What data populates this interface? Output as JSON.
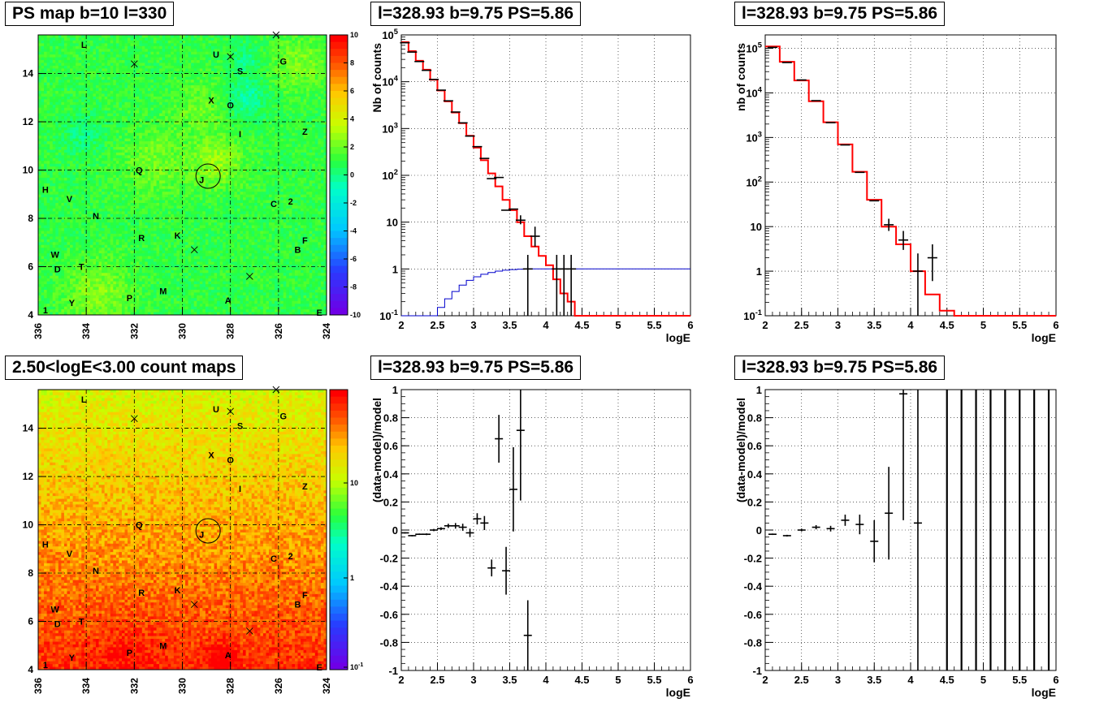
{
  "panel_titles": {
    "map_top": "PS map b=10 l=330",
    "spec_counts": "l=328.93 b=9.75 PS=5.86",
    "spec_counts2": "l=328.93 b=9.75 PS=5.86",
    "map_bottom": "2.50<logE<3.00 count maps",
    "resid1": "l=328.93 b=9.75 PS=5.86",
    "resid2": "l=328.93 b=9.75 PS=5.86"
  },
  "chart_data": [
    {
      "id": "ps_map",
      "type": "heatmap",
      "title": "PS map b=10 l=330",
      "x_ticks": [
        "336",
        "334",
        "332",
        "330",
        "328",
        "326",
        "324"
      ],
      "y_ticks": [
        "4",
        "6",
        "8",
        "10",
        "12",
        "14"
      ],
      "xlim": [
        336,
        324
      ],
      "ylim": [
        4,
        15.6
      ],
      "colorbar": {
        "ticks": [
          "10",
          "8",
          "6",
          "4",
          "2",
          "0",
          "-2",
          "-4",
          "-6",
          "-8",
          "-10"
        ],
        "range": [
          -10,
          10
        ]
      },
      "source_labels": [
        {
          "t": "L",
          "l": 334.1,
          "b": 15.2
        },
        {
          "t": "U",
          "l": 328.6,
          "b": 14.8
        },
        {
          "t": "G",
          "l": 325.8,
          "b": 14.5
        },
        {
          "t": "S",
          "l": 327.6,
          "b": 14.1
        },
        {
          "t": "X",
          "l": 328.8,
          "b": 12.9
        },
        {
          "t": "O",
          "l": 328.0,
          "b": 12.7
        },
        {
          "t": "I",
          "l": 327.6,
          "b": 11.5
        },
        {
          "t": "Z",
          "l": 324.9,
          "b": 11.6
        },
        {
          "t": "Q",
          "l": 331.8,
          "b": 10.0
        },
        {
          "t": "J",
          "l": 329.2,
          "b": 9.6
        },
        {
          "t": "F",
          "l": 324.9,
          "b": 7.1
        },
        {
          "t": "H",
          "l": 335.7,
          "b": 9.2
        },
        {
          "t": "V",
          "l": 334.7,
          "b": 8.8
        },
        {
          "t": "C",
          "l": 326.2,
          "b": 8.6
        },
        {
          "t": "2",
          "l": 325.5,
          "b": 8.7
        },
        {
          "t": "N",
          "l": 333.6,
          "b": 8.1
        },
        {
          "t": "R",
          "l": 331.7,
          "b": 7.2
        },
        {
          "t": "K",
          "l": 330.2,
          "b": 7.3
        },
        {
          "t": "B",
          "l": 325.2,
          "b": 6.7
        },
        {
          "t": "W",
          "l": 335.3,
          "b": 6.5
        },
        {
          "t": "D",
          "l": 335.2,
          "b": 5.9
        },
        {
          "t": "T",
          "l": 334.2,
          "b": 6.0
        },
        {
          "t": "M",
          "l": 330.8,
          "b": 5.0
        },
        {
          "t": "P",
          "l": 332.2,
          "b": 4.7
        },
        {
          "t": "A",
          "l": 328.1,
          "b": 4.6
        },
        {
          "t": "Y",
          "l": 334.6,
          "b": 4.5
        },
        {
          "t": "1",
          "l": 335.7,
          "b": 4.2
        },
        {
          "t": "E",
          "l": 324.3,
          "b": 4.1
        }
      ],
      "cross_markers": [
        {
          "l": 332.0,
          "b": 14.4
        },
        {
          "l": 328.0,
          "b": 14.7
        },
        {
          "l": 326.1,
          "b": 15.6
        },
        {
          "l": 329.5,
          "b": 6.7
        },
        {
          "l": 327.2,
          "b": 5.6
        }
      ],
      "circle": {
        "l": 328.93,
        "b": 9.75
      }
    },
    {
      "id": "counts_fit",
      "type": "line",
      "title": "l=328.93 b=9.75 PS=5.86",
      "xlabel": "logE",
      "ylabel": "Nb of counts",
      "xlim": [
        2,
        6
      ],
      "ylim": [
        0.1,
        100000
      ],
      "log_y": true,
      "x_ticks": [
        "2",
        "2.5",
        "3",
        "3.5",
        "4",
        "4.5",
        "5",
        "5.5",
        "6"
      ],
      "y_ticks": [
        "10^-1",
        "1",
        "10",
        "10^2",
        "10^3",
        "10^4",
        "10^5"
      ],
      "grid": true,
      "series": [
        {
          "name": "model_total",
          "color": "#ff0000",
          "style": "step",
          "x": [
            2.0,
            2.1,
            2.2,
            2.3,
            2.4,
            2.5,
            2.6,
            2.7,
            2.8,
            2.9,
            3.0,
            3.1,
            3.2,
            3.3,
            3.4,
            3.5,
            3.6,
            3.7,
            3.8,
            3.9,
            4.0,
            4.1,
            4.2,
            4.3,
            4.4,
            4.5,
            6.0
          ],
          "y": [
            70000,
            45000,
            28000,
            18000,
            11000,
            6500,
            3800,
            2200,
            1300,
            700,
            390,
            210,
            110,
            58,
            30,
            18,
            10,
            5,
            3,
            1.9,
            1.2,
            0.6,
            0.3,
            0.2,
            0.1,
            0.1,
            0.1
          ]
        },
        {
          "name": "model_ps",
          "color": "#0000cc",
          "style": "step",
          "x": [
            2.0,
            2.2,
            2.4,
            2.5,
            2.6,
            2.7,
            2.8,
            2.9,
            3.0,
            3.1,
            3.2,
            3.3,
            3.4,
            3.5,
            3.6,
            3.7,
            3.8,
            4.0,
            4.2,
            4.4,
            6.0
          ],
          "y": [
            0.1,
            0.1,
            0.1,
            0.15,
            0.23,
            0.33,
            0.45,
            0.57,
            0.68,
            0.77,
            0.84,
            0.9,
            0.94,
            0.97,
            0.99,
            1.0,
            1.0,
            1.0,
            1.0,
            1.0,
            1.0
          ]
        },
        {
          "name": "data",
          "color": "#000000",
          "style": "errorbar",
          "x": [
            2.05,
            2.15,
            2.25,
            2.35,
            2.45,
            2.55,
            2.65,
            2.75,
            2.85,
            2.95,
            3.05,
            3.15,
            3.25,
            3.35,
            3.45,
            3.55,
            3.65,
            3.75,
            3.85,
            4.15,
            4.25,
            4.35
          ],
          "y": [
            68000,
            43000,
            27000,
            17500,
            11200,
            6600,
            3900,
            2250,
            1320,
            690,
            410,
            230,
            85,
            90,
            18,
            19,
            11,
            1,
            5,
            1,
            1,
            1
          ],
          "err_lo": [
            0,
            0,
            0,
            0,
            0,
            0,
            0,
            0,
            0,
            0,
            0,
            0,
            0,
            0,
            0,
            0,
            2,
            0.9,
            2,
            0.9,
            0.9,
            0.9
          ],
          "err_hi": [
            0,
            0,
            0,
            0,
            0,
            0,
            0,
            0,
            0,
            0,
            0,
            0,
            0,
            0,
            0,
            0,
            3,
            1,
            3,
            1,
            1,
            1
          ]
        }
      ]
    },
    {
      "id": "counts_fit2",
      "type": "line",
      "title": "l=328.93 b=9.75 PS=5.86",
      "xlabel": "logE",
      "ylabel": "nb of counts",
      "xlim": [
        2,
        6
      ],
      "ylim": [
        0.1,
        200000
      ],
      "log_y": true,
      "x_ticks": [
        "2",
        "2.5",
        "3",
        "3.5",
        "4",
        "4.5",
        "5",
        "5.5",
        "6"
      ],
      "y_ticks": [
        "10^-1",
        "1",
        "10",
        "10^2",
        "10^3",
        "10^4",
        "10^5"
      ],
      "grid": true,
      "series": [
        {
          "name": "model",
          "color": "#ff0000",
          "style": "step",
          "x": [
            2.0,
            2.2,
            2.4,
            2.6,
            2.8,
            3.0,
            3.2,
            3.4,
            3.6,
            3.8,
            4.0,
            4.2,
            4.4,
            4.6,
            6.0
          ],
          "y": [
            110000,
            50000,
            19000,
            6500,
            2200,
            700,
            170,
            40,
            10,
            4,
            1,
            0.3,
            0.13,
            0.1,
            0.1
          ]
        },
        {
          "name": "data",
          "color": "#000000",
          "style": "errorbar",
          "x": [
            2.1,
            2.3,
            2.5,
            2.7,
            2.9,
            3.1,
            3.3,
            3.5,
            3.7,
            3.9,
            4.1,
            4.3
          ],
          "y": [
            105000,
            48000,
            19500,
            6700,
            2150,
            680,
            165,
            38,
            11,
            5,
            1,
            2
          ],
          "err_lo": [
            0,
            0,
            0,
            0,
            0,
            0,
            0,
            0,
            3,
            2,
            0.9,
            1.4
          ],
          "err_hi": [
            0,
            0,
            0,
            0,
            0,
            0,
            0,
            0,
            4,
            3,
            1.5,
            2
          ]
        }
      ]
    },
    {
      "id": "count_map",
      "type": "heatmap",
      "title": "2.50<logE<3.00 count maps",
      "x_ticks": [
        "336",
        "334",
        "332",
        "330",
        "328",
        "326",
        "324"
      ],
      "y_ticks": [
        "4",
        "6",
        "8",
        "10",
        "12",
        "14"
      ],
      "xlim": [
        336,
        324
      ],
      "ylim": [
        4,
        15.6
      ],
      "colorbar": {
        "ticks": [
          "10",
          "1",
          "10^-1"
        ],
        "log": true
      }
    },
    {
      "id": "resid1",
      "type": "scatter",
      "title": "l=328.93 b=9.75 PS=5.86",
      "xlabel": "logE",
      "ylabel": "(data-model)/model",
      "xlim": [
        2,
        6
      ],
      "ylim": [
        -1,
        1
      ],
      "x_ticks": [
        "2",
        "2.5",
        "3",
        "3.5",
        "4",
        "4.5",
        "5",
        "5.5",
        "6"
      ],
      "y_ticks": [
        "-1",
        "-0.8",
        "-0.6",
        "-0.4",
        "-0.2",
        "0",
        "0.2",
        "0.4",
        "0.6",
        "0.8",
        "1"
      ],
      "grid": true,
      "points": {
        "x": [
          2.05,
          2.15,
          2.25,
          2.35,
          2.45,
          2.55,
          2.65,
          2.75,
          2.85,
          2.95,
          3.05,
          3.15,
          3.25,
          3.35,
          3.45,
          3.55,
          3.65,
          3.75
        ],
        "y": [
          -0.02,
          -0.04,
          -0.03,
          -0.03,
          0.0,
          0.01,
          0.03,
          0.03,
          0.02,
          -0.02,
          0.08,
          0.05,
          -0.27,
          0.65,
          -0.29,
          0.29,
          0.71,
          -0.75
        ],
        "err": [
          0.005,
          0.005,
          0.005,
          0.006,
          0.008,
          0.01,
          0.015,
          0.02,
          0.025,
          0.03,
          0.04,
          0.05,
          0.06,
          0.17,
          0.17,
          0.3,
          0.5,
          0.25
        ]
      }
    },
    {
      "id": "resid2",
      "type": "scatter",
      "title": "l=328.93 b=9.75 PS=5.86",
      "xlabel": "logE",
      "ylabel": "(data-model)/model",
      "xlim": [
        2,
        6
      ],
      "ylim": [
        -1,
        1
      ],
      "x_ticks": [
        "2",
        "2.5",
        "3",
        "3.5",
        "4",
        "4.5",
        "5",
        "5.5",
        "6"
      ],
      "y_ticks": [
        "-1",
        "-0.8",
        "-0.6",
        "-0.4",
        "-0.2",
        "0",
        "0.2",
        "0.4",
        "0.6",
        "0.8",
        "1"
      ],
      "grid": true,
      "points": {
        "x": [
          2.1,
          2.3,
          2.5,
          2.7,
          2.9,
          3.1,
          3.3,
          3.5,
          3.7,
          3.9,
          4.1
        ],
        "y": [
          -0.03,
          -0.04,
          0.0,
          0.02,
          0.01,
          0.07,
          0.04,
          -0.08,
          0.12,
          0.97,
          0.05
        ],
        "err": [
          0.005,
          0.006,
          0.01,
          0.015,
          0.02,
          0.04,
          0.07,
          0.15,
          0.33,
          0.9,
          1.2
        ]
      },
      "vertical_bars_x": [
        4.5,
        4.7,
        4.9,
        5.1,
        5.3,
        5.5,
        5.7,
        5.9
      ]
    }
  ]
}
